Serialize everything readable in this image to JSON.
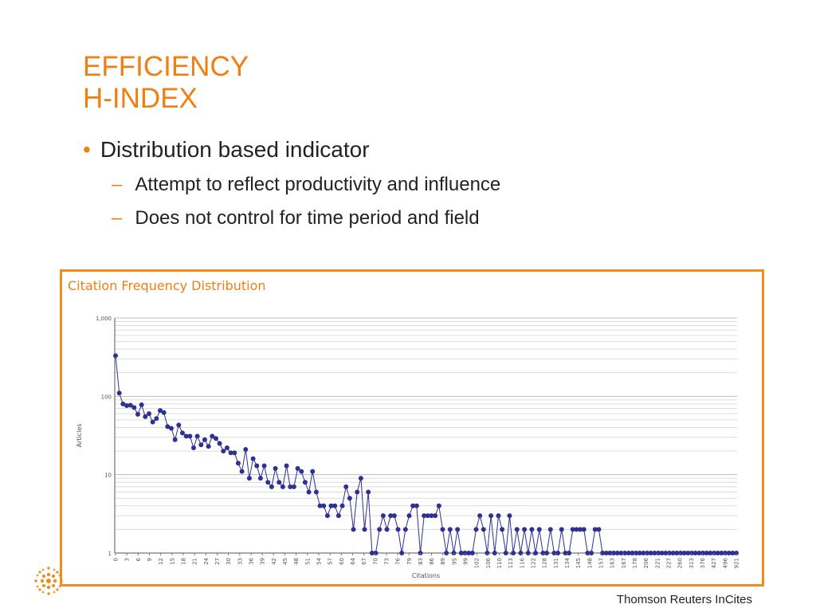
{
  "slide": {
    "title_line1": "EFFICIENCY",
    "title_line2": "H-INDEX",
    "bullet": "Distribution based indicator",
    "sub_bullets": [
      "Attempt to reflect productivity and influence",
      "Does not control for time period and field"
    ],
    "footer": "Thomson Reuters InCites"
  },
  "colors": {
    "accent": "#f07f12",
    "series": "#2e3192"
  },
  "chart_data": {
    "type": "line",
    "title": "Citation Frequency Distribution",
    "xlabel": "Citations",
    "ylabel": "Articles",
    "yscale": "log",
    "ylim": [
      1,
      1000
    ],
    "y_ticks": [
      1,
      10,
      100,
      1000
    ],
    "y_tick_labels": [
      "1",
      "10",
      "100",
      "1,000"
    ],
    "x_tick_labels": [
      "0",
      "3",
      "6",
      "9",
      "12",
      "15",
      "18",
      "21",
      "24",
      "27",
      "30",
      "33",
      "36",
      "39",
      "42",
      "45",
      "48",
      "51",
      "54",
      "57",
      "60",
      "64",
      "67",
      "70",
      "73",
      "76",
      "79",
      "83",
      "86",
      "89",
      "95",
      "99",
      "102",
      "106",
      "110",
      "113",
      "116",
      "122",
      "128",
      "131",
      "134",
      "145",
      "148",
      "157",
      "163",
      "167",
      "178",
      "206",
      "221",
      "227",
      "260",
      "313",
      "376",
      "427",
      "496",
      "921"
    ],
    "grid": true,
    "legend": "none",
    "values": [
      330,
      110,
      80,
      76,
      77,
      72,
      59,
      78,
      55,
      60,
      47,
      52,
      66,
      62,
      41,
      39,
      28,
      43,
      34,
      31,
      31,
      22,
      31,
      24,
      28,
      23,
      31,
      29,
      25,
      20,
      22,
      19,
      19,
      14,
      11,
      21,
      9,
      16,
      13,
      9,
      13,
      8,
      7,
      12,
      8,
      7,
      13,
      7,
      7,
      12,
      11,
      8,
      6,
      11,
      6,
      4,
      4,
      3,
      4,
      4,
      3,
      4,
      7,
      5,
      2,
      6,
      9,
      2,
      6,
      1,
      1,
      2,
      3,
      2,
      3,
      3,
      2,
      1,
      2,
      3,
      4,
      4,
      1,
      3,
      3,
      3,
      3,
      4,
      2,
      1,
      2,
      1,
      2,
      1,
      1,
      1,
      1,
      2,
      3,
      2,
      1,
      3,
      1,
      3,
      2,
      1,
      3,
      1,
      2,
      1,
      2,
      1,
      2,
      1,
      2,
      1,
      1,
      2,
      1,
      1,
      2,
      1,
      1,
      2,
      2,
      2,
      2,
      1,
      1,
      2,
      2,
      1,
      1,
      1,
      1,
      1,
      1,
      1,
      1,
      1,
      1,
      1,
      1,
      1,
      1,
      1,
      1,
      1,
      1,
      1,
      1,
      1,
      1,
      1,
      1,
      1,
      1,
      1,
      1,
      1,
      1,
      1,
      1,
      1,
      1,
      1,
      1,
      1
    ]
  }
}
